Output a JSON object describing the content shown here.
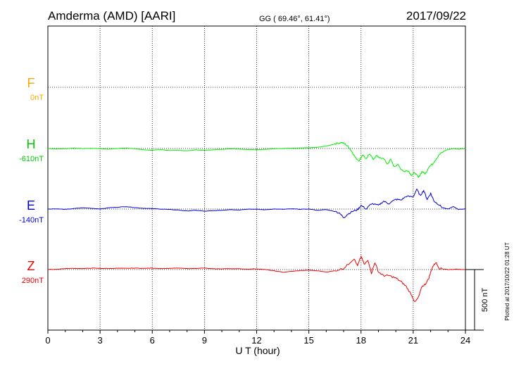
{
  "header": {
    "station": "Amderma (AMD)  [AARI]",
    "coords": "GG ( 69.46°,  61.41°)",
    "date": "2017/09/22"
  },
  "plotted_note": "Plotted at 2017/10/22 01:28 UT",
  "scale_label": "500 nT",
  "chart_data": {
    "type": "line",
    "title": "Amderma (AMD)  [AARI]",
    "xlabel": "U T (hour)",
    "x_ticks": [
      "0",
      "3",
      "6",
      "9",
      "12",
      "15",
      "18",
      "21",
      "24"
    ],
    "xlim": [
      0,
      24
    ],
    "grid": true,
    "scale_bar_nT": 500,
    "series": [
      {
        "name": "F",
        "baseline_label": "0nT",
        "color": "#ffa500",
        "offset_nT": 0,
        "x": [],
        "values": []
      },
      {
        "name": "H",
        "baseline_label": "-610nT",
        "color": "#00ee00",
        "offset_nT": -610,
        "x": [
          0,
          0.5,
          1,
          1.5,
          2,
          2.5,
          3,
          3.5,
          4,
          4.5,
          5,
          5.5,
          6,
          6.5,
          7,
          7.5,
          8,
          8.5,
          9,
          9.5,
          10,
          10.5,
          11,
          11.5,
          12,
          12.5,
          13,
          13.5,
          14,
          14.5,
          15,
          15.5,
          16,
          16.3,
          16.6,
          16.9,
          17.1,
          17.3,
          17.5,
          17.7,
          17.9,
          18.1,
          18.3,
          18.5,
          18.7,
          18.9,
          19.1,
          19.3,
          19.5,
          19.7,
          19.9,
          20.1,
          20.3,
          20.5,
          20.7,
          20.9,
          21.1,
          21.3,
          21.5,
          21.7,
          21.9,
          22.1,
          22.3,
          22.5,
          22.8,
          23,
          23.3,
          23.6,
          24
        ],
        "values": [
          -610,
          -614,
          -612,
          -606,
          -611,
          -608,
          -612,
          -615,
          -610,
          -605,
          -613,
          -620,
          -624,
          -620,
          -626,
          -625,
          -629,
          -621,
          -625,
          -620,
          -616,
          -612,
          -614,
          -618,
          -620,
          -616,
          -612,
          -610,
          -608,
          -606,
          -604,
          -600,
          -590,
          -580,
          -568,
          -560,
          -575,
          -600,
          -640,
          -690,
          -710,
          -660,
          -700,
          -650,
          -700,
          -670,
          -690,
          -690,
          -740,
          -700,
          -760,
          -740,
          -780,
          -800,
          -790,
          -830,
          -810,
          -850,
          -800,
          -820,
          -760,
          -740,
          -700,
          -660,
          -630,
          -618,
          -612,
          -615,
          -610
        ]
      },
      {
        "name": "E",
        "baseline_label": "-140nT",
        "color": "#0000dd",
        "offset_nT": -140,
        "x": [
          0,
          0.5,
          1,
          1.5,
          2,
          2.5,
          3,
          3.5,
          4,
          4.5,
          5,
          5.5,
          6,
          6.5,
          7,
          7.5,
          8,
          8.5,
          9,
          9.5,
          10,
          10.5,
          11,
          11.5,
          12,
          12.5,
          13,
          13.5,
          14,
          14.5,
          15,
          15.5,
          16,
          16.5,
          16.8,
          17,
          17.2,
          17.5,
          17.8,
          18,
          18.3,
          18.6,
          19,
          19.3,
          19.6,
          20,
          20.3,
          20.6,
          21,
          21.2,
          21.4,
          21.6,
          21.8,
          22,
          22.2,
          22.4,
          22.7,
          23,
          23.3,
          23.6,
          24
        ],
        "values": [
          -140,
          -138,
          -143,
          -136,
          -130,
          -134,
          -139,
          -130,
          -125,
          -120,
          -128,
          -134,
          -136,
          -140,
          -144,
          -148,
          -156,
          -150,
          -158,
          -154,
          -150,
          -144,
          -148,
          -140,
          -142,
          -146,
          -140,
          -142,
          -138,
          -142,
          -140,
          -150,
          -145,
          -160,
          -175,
          -215,
          -185,
          -160,
          -145,
          -110,
          -140,
          -95,
          -110,
          -75,
          -95,
          -60,
          -65,
          -35,
          -40,
          25,
          -30,
          15,
          -60,
          -10,
          -75,
          -95,
          -130,
          -140,
          -120,
          -143,
          -138
        ]
      },
      {
        "name": "Z",
        "baseline_label": "290nT",
        "color": "#ee0000",
        "offset_nT": 290,
        "x": [
          0,
          0.5,
          1,
          1.5,
          2,
          2.5,
          3,
          3.5,
          4,
          4.5,
          5,
          5.5,
          6,
          6.5,
          7,
          7.5,
          8,
          8.5,
          9,
          9.5,
          10,
          10.5,
          11,
          11.5,
          12,
          12.5,
          13,
          13.5,
          14,
          14.5,
          15,
          15.5,
          16,
          16.5,
          17,
          17.3,
          17.6,
          17.8,
          18,
          18.2,
          18.4,
          18.6,
          18.8,
          19,
          19.3,
          19.6,
          20,
          20.3,
          20.6,
          20.9,
          21.1,
          21.3,
          21.5,
          21.7,
          21.9,
          22.1,
          22.3,
          22.5,
          22.8,
          23,
          23.5,
          24
        ],
        "values": [
          290,
          293,
          298,
          300,
          298,
          302,
          300,
          298,
          301,
          300,
          302,
          300,
          302,
          298,
          300,
          302,
          298,
          300,
          302,
          296,
          296,
          298,
          296,
          294,
          296,
          290,
          280,
          268,
          275,
          282,
          285,
          280,
          270,
          280,
          300,
          340,
          380,
          320,
          400,
          330,
          370,
          260,
          350,
          270,
          240,
          240,
          220,
          190,
          150,
          80,
          20,
          60,
          150,
          170,
          220,
          310,
          350,
          300,
          295,
          290,
          293,
          290
        ]
      }
    ]
  }
}
